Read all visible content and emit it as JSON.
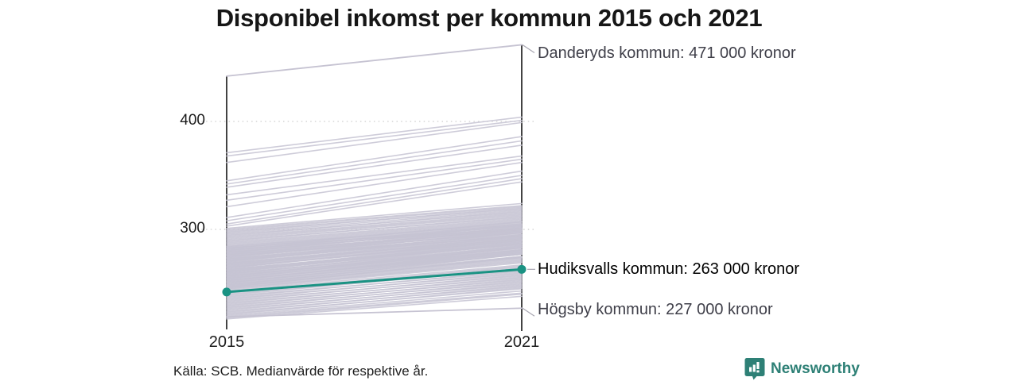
{
  "title": "Disponibel inkomst per kommun 2015 och 2021",
  "source_note": "Källa: SCB. Medianvärde för respektive år.",
  "branding": {
    "name": "Newsworthy",
    "color": "#2e8076"
  },
  "chart_data": {
    "type": "line",
    "subtype": "slope-chart",
    "x": [
      2015,
      2021
    ],
    "x_labels": [
      "2015",
      "2021"
    ],
    "y_ticks": [
      300,
      400
    ],
    "y_tick_labels": [
      "300",
      "400"
    ],
    "unit": "tusen kronor",
    "grid": "dotted-horizontal",
    "line_color": "#c6c3d2",
    "highlight_color": "#1a9283",
    "axis_color": "#141414",
    "grid_color": "#cdcdcd",
    "leader_color": "#a9a7b2",
    "annotations": [
      {
        "id": "danderyd",
        "label": "Danderyds kommun: 471 000 kronor",
        "values": [
          442,
          471
        ],
        "highlight": false
      },
      {
        "id": "hudiksvall",
        "label": "Hudiksvalls kommun: 263 000 kronor",
        "values": [
          242,
          263
        ],
        "highlight": true
      },
      {
        "id": "hogsby",
        "label": "Högsby kommun: 227 000 kronor",
        "values": [
          219,
          227
        ],
        "highlight": false
      }
    ],
    "background_lines": [
      [
        371,
        404
      ],
      [
        368,
        401
      ],
      [
        362,
        399
      ],
      [
        345,
        386
      ],
      [
        342,
        382
      ],
      [
        339,
        378
      ],
      [
        332,
        368
      ],
      [
        327,
        365
      ],
      [
        321,
        362
      ],
      [
        311,
        354
      ],
      [
        308,
        350
      ],
      [
        305,
        347
      ],
      [
        303,
        344
      ],
      [
        301,
        324
      ],
      [
        300,
        322
      ],
      [
        299,
        321
      ],
      [
        298,
        319
      ],
      [
        297,
        320
      ],
      [
        296,
        318
      ],
      [
        295,
        316
      ],
      [
        294,
        317
      ],
      [
        293,
        315
      ],
      [
        292,
        314
      ],
      [
        291,
        313
      ],
      [
        290,
        311
      ],
      [
        289,
        312
      ],
      [
        288,
        310
      ],
      [
        287,
        309
      ],
      [
        286,
        308
      ],
      [
        285,
        307
      ],
      [
        284,
        306
      ],
      [
        284,
        305
      ],
      [
        283,
        301
      ],
      [
        282,
        307
      ],
      [
        281,
        303
      ],
      [
        280,
        305
      ],
      [
        279,
        299
      ],
      [
        278,
        304
      ],
      [
        277,
        300
      ],
      [
        276,
        302
      ],
      [
        275,
        297
      ],
      [
        274,
        301
      ],
      [
        273,
        296
      ],
      [
        272,
        299
      ],
      [
        271,
        294
      ],
      [
        270,
        297
      ],
      [
        269,
        293
      ],
      [
        268,
        295
      ],
      [
        267,
        291
      ],
      [
        266,
        294
      ],
      [
        265,
        289
      ],
      [
        264,
        292
      ],
      [
        263,
        288
      ],
      [
        262,
        290
      ],
      [
        261,
        286
      ],
      [
        260,
        288
      ],
      [
        259,
        284
      ],
      [
        258,
        287
      ],
      [
        257,
        283
      ],
      [
        256,
        285
      ],
      [
        255,
        281
      ],
      [
        254,
        283
      ],
      [
        253,
        279
      ],
      [
        252,
        281
      ],
      [
        251,
        277
      ],
      [
        250,
        279
      ],
      [
        249,
        275
      ],
      [
        248,
        277
      ],
      [
        247,
        273
      ],
      [
        246,
        275
      ],
      [
        245,
        271
      ],
      [
        283,
        304
      ],
      [
        281,
        300
      ],
      [
        279,
        302
      ],
      [
        277,
        298
      ],
      [
        275,
        300
      ],
      [
        273,
        295
      ],
      [
        271,
        297
      ],
      [
        269,
        291
      ],
      [
        267,
        293
      ],
      [
        265,
        290
      ],
      [
        263,
        287
      ],
      [
        261,
        289
      ],
      [
        259,
        285
      ],
      [
        257,
        281
      ],
      [
        255,
        283
      ],
      [
        253,
        278
      ],
      [
        251,
        280
      ],
      [
        249,
        277
      ],
      [
        247,
        274
      ],
      [
        245,
        270
      ],
      [
        282,
        303
      ],
      [
        280,
        301
      ],
      [
        278,
        299
      ],
      [
        276,
        297
      ],
      [
        274,
        298
      ],
      [
        272,
        294
      ],
      [
        270,
        295
      ],
      [
        268,
        292
      ],
      [
        266,
        290
      ],
      [
        264,
        291
      ],
      [
        262,
        286
      ],
      [
        260,
        287
      ],
      [
        258,
        283
      ],
      [
        256,
        284
      ],
      [
        254,
        280
      ],
      [
        252,
        282
      ],
      [
        250,
        278
      ],
      [
        248,
        274
      ],
      [
        246,
        272
      ],
      [
        244,
        269
      ],
      [
        243,
        267
      ],
      [
        242,
        265
      ],
      [
        241,
        266
      ],
      [
        240,
        263
      ],
      [
        239,
        264
      ],
      [
        238,
        261
      ],
      [
        237,
        262
      ],
      [
        236,
        259
      ],
      [
        235,
        260
      ],
      [
        234,
        257
      ],
      [
        233,
        258
      ],
      [
        232,
        255
      ],
      [
        231,
        256
      ],
      [
        230,
        253
      ],
      [
        229,
        254
      ],
      [
        228,
        251
      ],
      [
        227,
        252
      ],
      [
        226,
        249
      ],
      [
        225,
        250
      ],
      [
        224,
        247
      ],
      [
        223,
        248
      ],
      [
        222,
        245
      ],
      [
        221,
        246
      ],
      [
        220,
        243
      ],
      [
        219,
        241
      ],
      [
        218,
        240
      ],
      [
        217,
        238
      ]
    ]
  }
}
